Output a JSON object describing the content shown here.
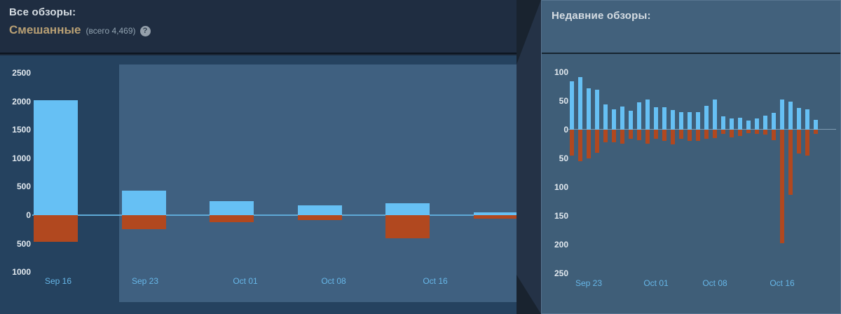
{
  "left_panel": {
    "title": "Все обзоры:",
    "summary_rating": "Смешанные",
    "total_label": "(всего 4,469)",
    "help_icon": "?"
  },
  "right_panel": {
    "title": "Недавние обзоры:"
  },
  "colors": {
    "positive_bar": "#66c0f4",
    "negative_bar": "#b1481f",
    "highlight_bg": "#3f6080",
    "zero_line_left": "#5ea9d6",
    "zero_line_right": "rgba(180,205,225,0.55)",
    "axis_label": "#e2e9ef",
    "date_label": "#67b7e8",
    "rating_color": "#b9a074"
  },
  "chart_data": [
    {
      "type": "bar",
      "name": "all-reviews-weekly",
      "title": "Все обзоры (weekly positive/negative review counts)",
      "categories": [
        "Sep 16",
        "Sep 23",
        "Oct 01",
        "Oct 08",
        "Oct 16",
        ""
      ],
      "series": [
        {
          "name": "positive",
          "values": [
            2020,
            430,
            245,
            175,
            205,
            45
          ]
        },
        {
          "name": "negative",
          "values": [
            -470,
            -250,
            -120,
            -90,
            -410,
            -55
          ]
        }
      ],
      "y_ticks": [
        2500,
        2000,
        1500,
        1000,
        500,
        0,
        -500,
        -1000
      ],
      "y_tick_display_absolute": true,
      "x_tick_labels": [
        "Sep 16",
        "Sep 23",
        "Oct 01",
        "Oct 08",
        "Oct 16"
      ],
      "ylim": [
        -1000,
        2500
      ],
      "grid": false,
      "legend": false,
      "note": "weeks from Sep 23 onward are inside the highlighted recent-range selection"
    },
    {
      "type": "bar",
      "name": "recent-reviews-daily",
      "title": "Недавние обзоры (daily positive/negative review counts)",
      "series": [
        {
          "name": "positive",
          "values": [
            84,
            92,
            72,
            69,
            44,
            36,
            40,
            33,
            48,
            52,
            39,
            39,
            34,
            30,
            31,
            30,
            41,
            53,
            23,
            19,
            21,
            16,
            19,
            24,
            29,
            52,
            49,
            38,
            36,
            17
          ]
        },
        {
          "name": "negative",
          "values": [
            -45,
            -55,
            -50,
            -40,
            -22,
            -22,
            -24,
            -16,
            -18,
            -24,
            -16,
            -19,
            -26,
            -16,
            -19,
            -19,
            -16,
            -14,
            -7,
            -13,
            -11,
            -6,
            -7,
            -8,
            -18,
            -197,
            -113,
            -42,
            -45,
            -7
          ]
        }
      ],
      "y_ticks": [
        100,
        50,
        0,
        -50,
        -100,
        -150,
        -200,
        -250
      ],
      "y_tick_display_absolute": true,
      "x_tick_labels": [
        "Sep 23",
        "Oct 01",
        "Oct 08",
        "Oct 16"
      ],
      "x_tick_day_index": [
        2,
        10,
        17,
        25
      ],
      "ylim": [
        -250,
        100
      ],
      "grid": false,
      "legend": false
    }
  ]
}
